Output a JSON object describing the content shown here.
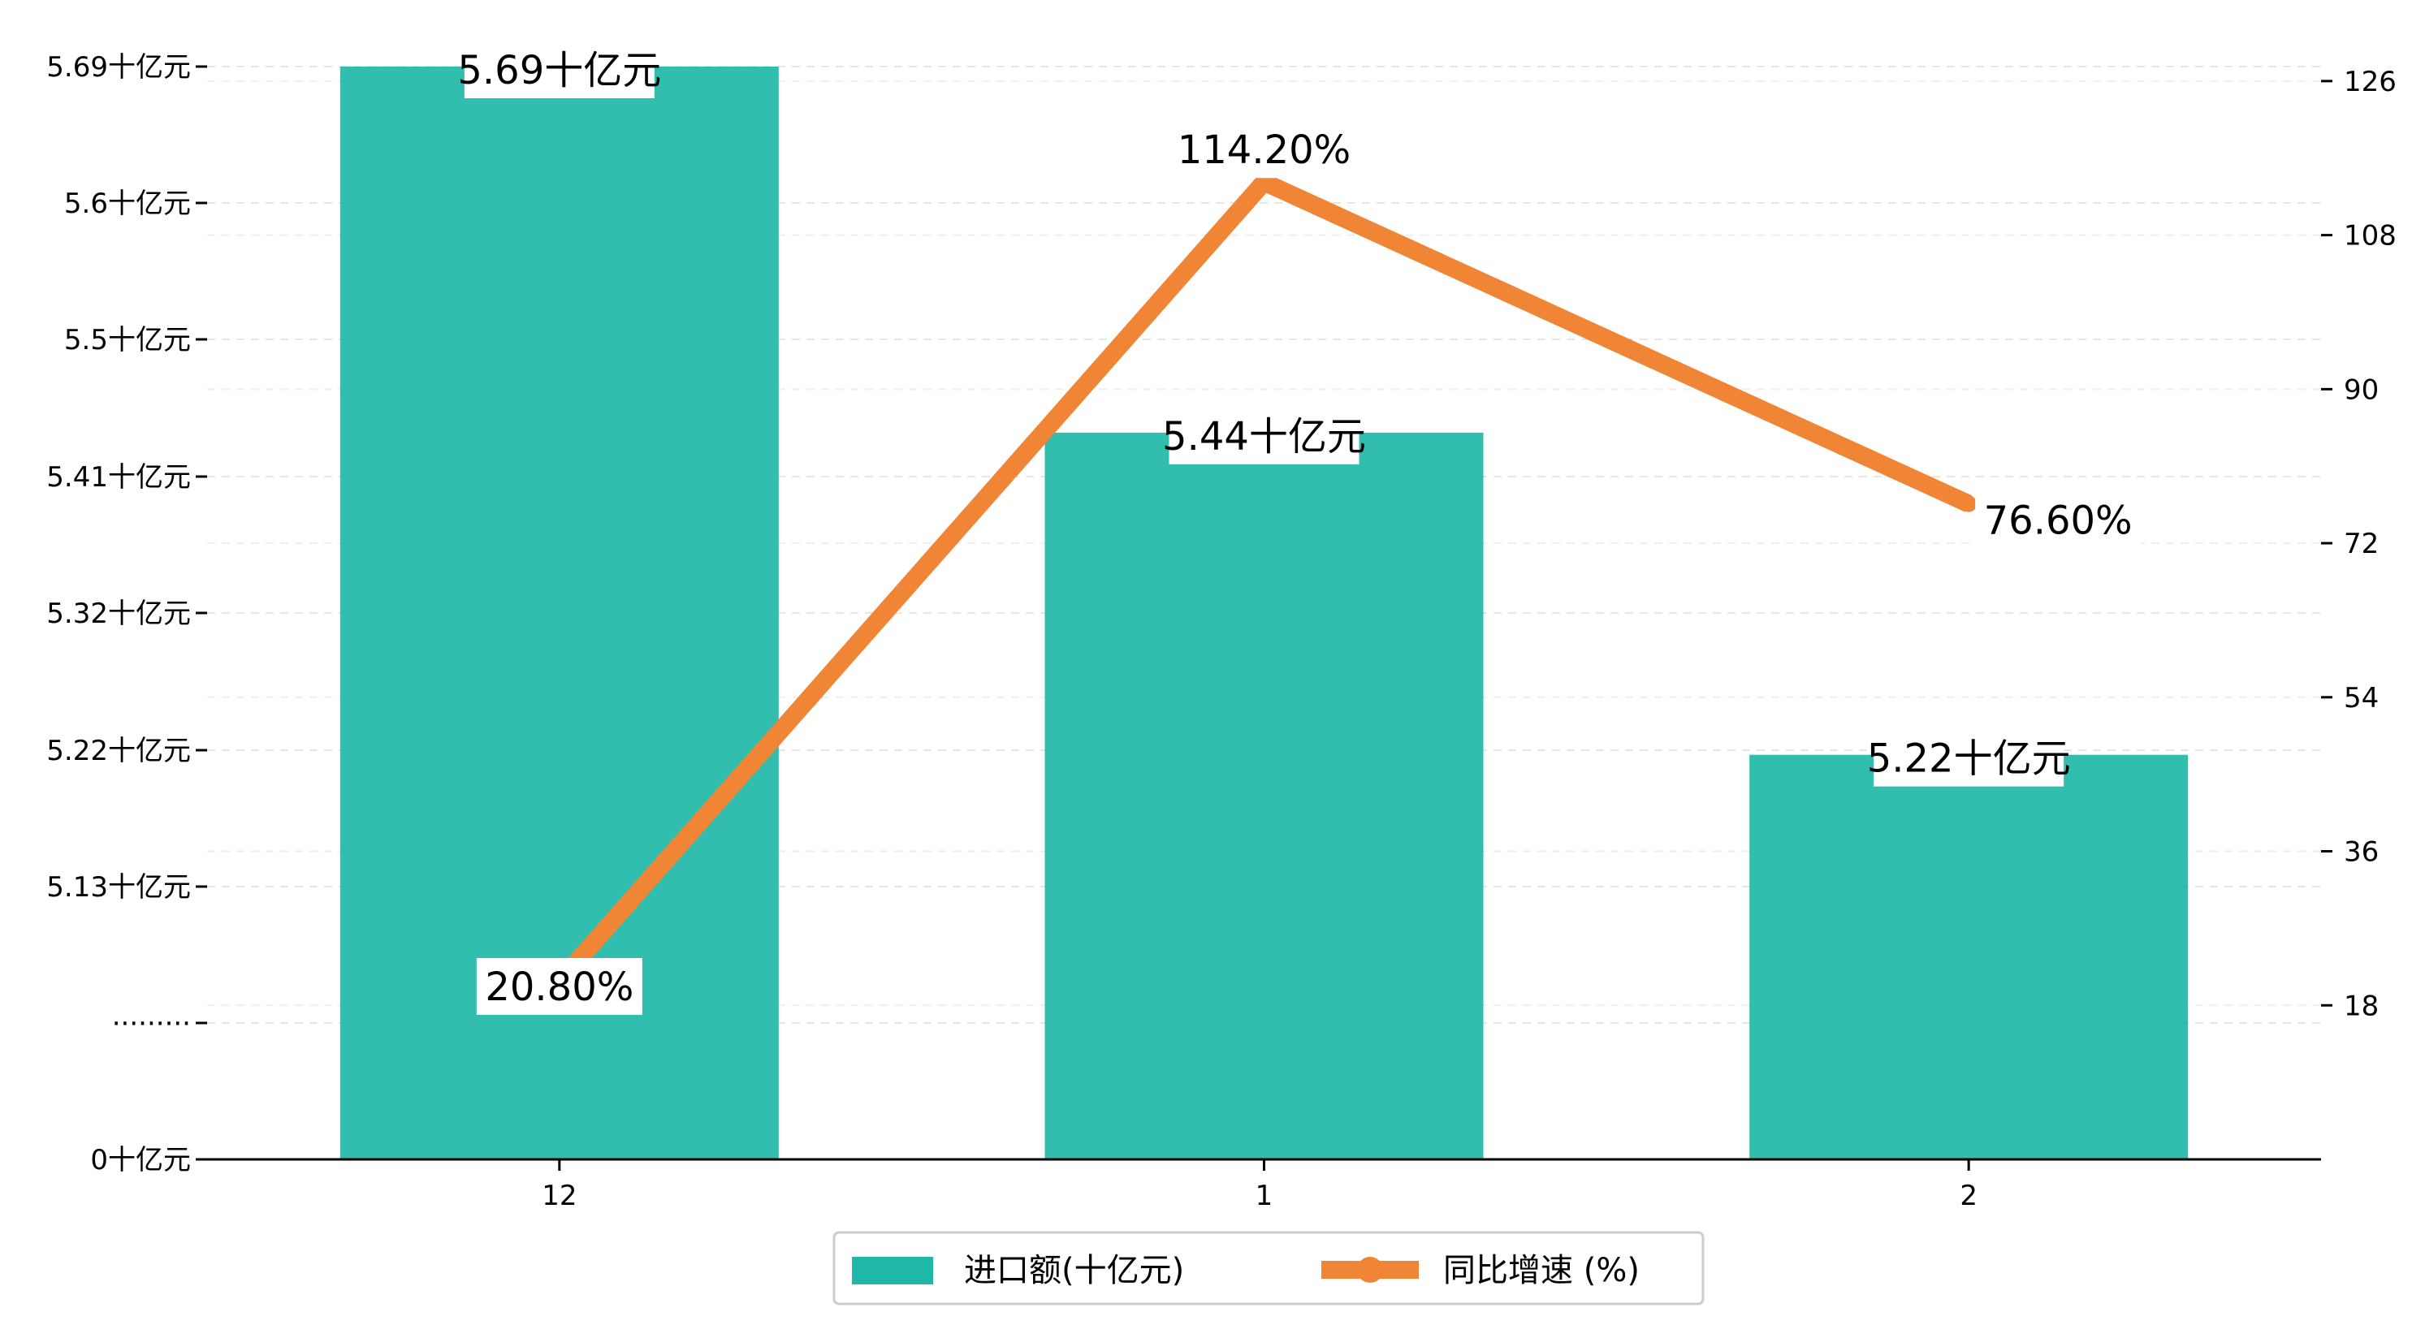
{
  "chart_data": {
    "type": "bar+line",
    "categories": [
      "12",
      "1",
      "2"
    ],
    "series": [
      {
        "name": "进口额(十亿元)",
        "type": "bar",
        "axis": "left",
        "values": [
          5.69,
          5.44,
          5.22
        ],
        "labels": [
          "5.69十亿元",
          "5.44十亿元",
          "5.22十亿元"
        ],
        "color": "#1fb8a8"
      },
      {
        "name": "同比增速 (%)",
        "type": "line",
        "axis": "right",
        "values": [
          20.8,
          114.2,
          76.6
        ],
        "labels": [
          "20.80%",
          "114.20%",
          "76.60%"
        ],
        "color": "#ef8535"
      }
    ],
    "y_left": {
      "broken": true,
      "tick_labels": [
        "0十亿元",
        "·········",
        "5.13十亿元",
        "5.22十亿元",
        "5.32十亿元",
        "5.41十亿元",
        "5.5十亿元",
        "5.6十亿元",
        "5.69十亿元"
      ],
      "tick_values": [
        0,
        null,
        5.13,
        5.22,
        5.32,
        5.41,
        5.5,
        5.6,
        5.69
      ]
    },
    "y_right": {
      "range": [
        0,
        135
      ],
      "ticks": [
        18,
        36,
        54,
        72,
        90,
        108,
        126
      ]
    },
    "grid": "horizontal dashed",
    "legend_position": "bottom-center"
  }
}
